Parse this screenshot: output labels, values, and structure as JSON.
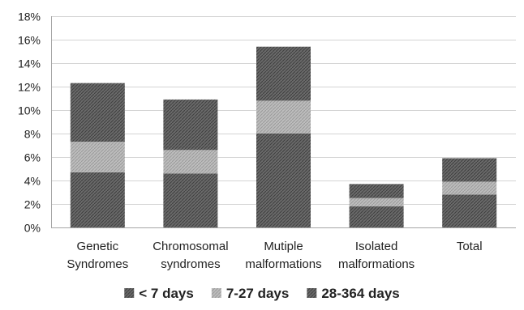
{
  "chart_data": {
    "type": "bar",
    "stacked": true,
    "categories": [
      [
        "Genetic",
        "Syndromes"
      ],
      [
        "Chromosomal",
        "syndromes"
      ],
      [
        "Mutiple",
        "malformations"
      ],
      [
        "Isolated",
        "malformations"
      ],
      [
        "Total"
      ]
    ],
    "series": [
      {
        "name": "< 7 days",
        "values": [
          4.7,
          4.6,
          8.0,
          1.8,
          2.8
        ],
        "color": "#5a5a5a",
        "pattern": "dark-hatch"
      },
      {
        "name": "7-27 days",
        "values": [
          2.6,
          2.0,
          2.8,
          0.7,
          1.1
        ],
        "color": "#b4b4b4",
        "pattern": "light-hatch"
      },
      {
        "name": "28-364 days",
        "values": [
          5.0,
          4.3,
          4.6,
          1.2,
          2.0
        ],
        "color": "#6e6e6e",
        "pattern": "dark-hatch"
      }
    ],
    "ylim": [
      0,
      18
    ],
    "yticks": [
      "0%",
      "2%",
      "4%",
      "6%",
      "8%",
      "10%",
      "12%",
      "14%",
      "16%",
      "18%"
    ],
    "ytick_values": [
      0,
      2,
      4,
      6,
      8,
      10,
      12,
      14,
      16,
      18
    ],
    "grid": true,
    "legend_position": "bottom",
    "title": "",
    "xlabel": "",
    "ylabel": ""
  }
}
